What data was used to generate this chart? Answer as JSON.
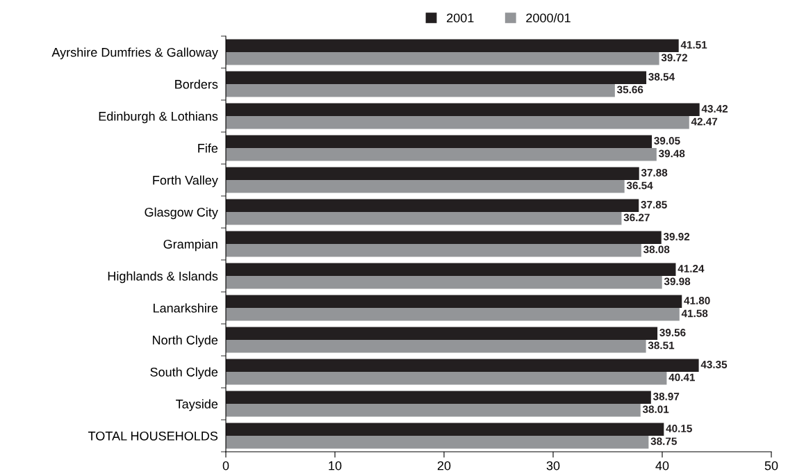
{
  "chart_data": {
    "type": "bar",
    "orientation": "horizontal",
    "categories": [
      "Ayrshire Dumfries & Galloway",
      "Borders",
      "Edinburgh & Lothians",
      "Fife",
      "Forth Valley",
      "Glasgow City",
      "Grampian",
      "Highlands & Islands",
      "Lanarkshire",
      "North Clyde",
      "South Clyde",
      "Tayside",
      "TOTAL HOUSEHOLDS"
    ],
    "series": [
      {
        "name": "2001",
        "color": "#231f20",
        "values": [
          41.51,
          38.54,
          43.42,
          39.05,
          37.88,
          37.85,
          39.92,
          41.24,
          41.8,
          39.56,
          43.35,
          38.97,
          40.15
        ],
        "value_labels": [
          "41.51",
          "38.54",
          "43.42",
          "39.05",
          "37.88",
          "37.85",
          "39.92",
          "41.24",
          "41.80",
          "39.56",
          "43.35",
          "38.97",
          "40.15"
        ]
      },
      {
        "name": "2000/01",
        "color": "#939598",
        "values": [
          39.72,
          35.66,
          42.47,
          39.48,
          36.54,
          36.27,
          38.08,
          39.98,
          41.58,
          38.51,
          40.41,
          38.01,
          38.75
        ],
        "value_labels": [
          "39.72",
          "35.66",
          "42.47",
          "39.48",
          "36.54",
          "36.27",
          "38.08",
          "39.98",
          "41.58",
          "38.51",
          "40.41",
          "38.01",
          "38.75"
        ]
      }
    ],
    "xlim": [
      0,
      50
    ],
    "xticks": [
      0,
      10,
      20,
      30,
      40,
      50
    ],
    "grid": false,
    "legend": "top"
  }
}
